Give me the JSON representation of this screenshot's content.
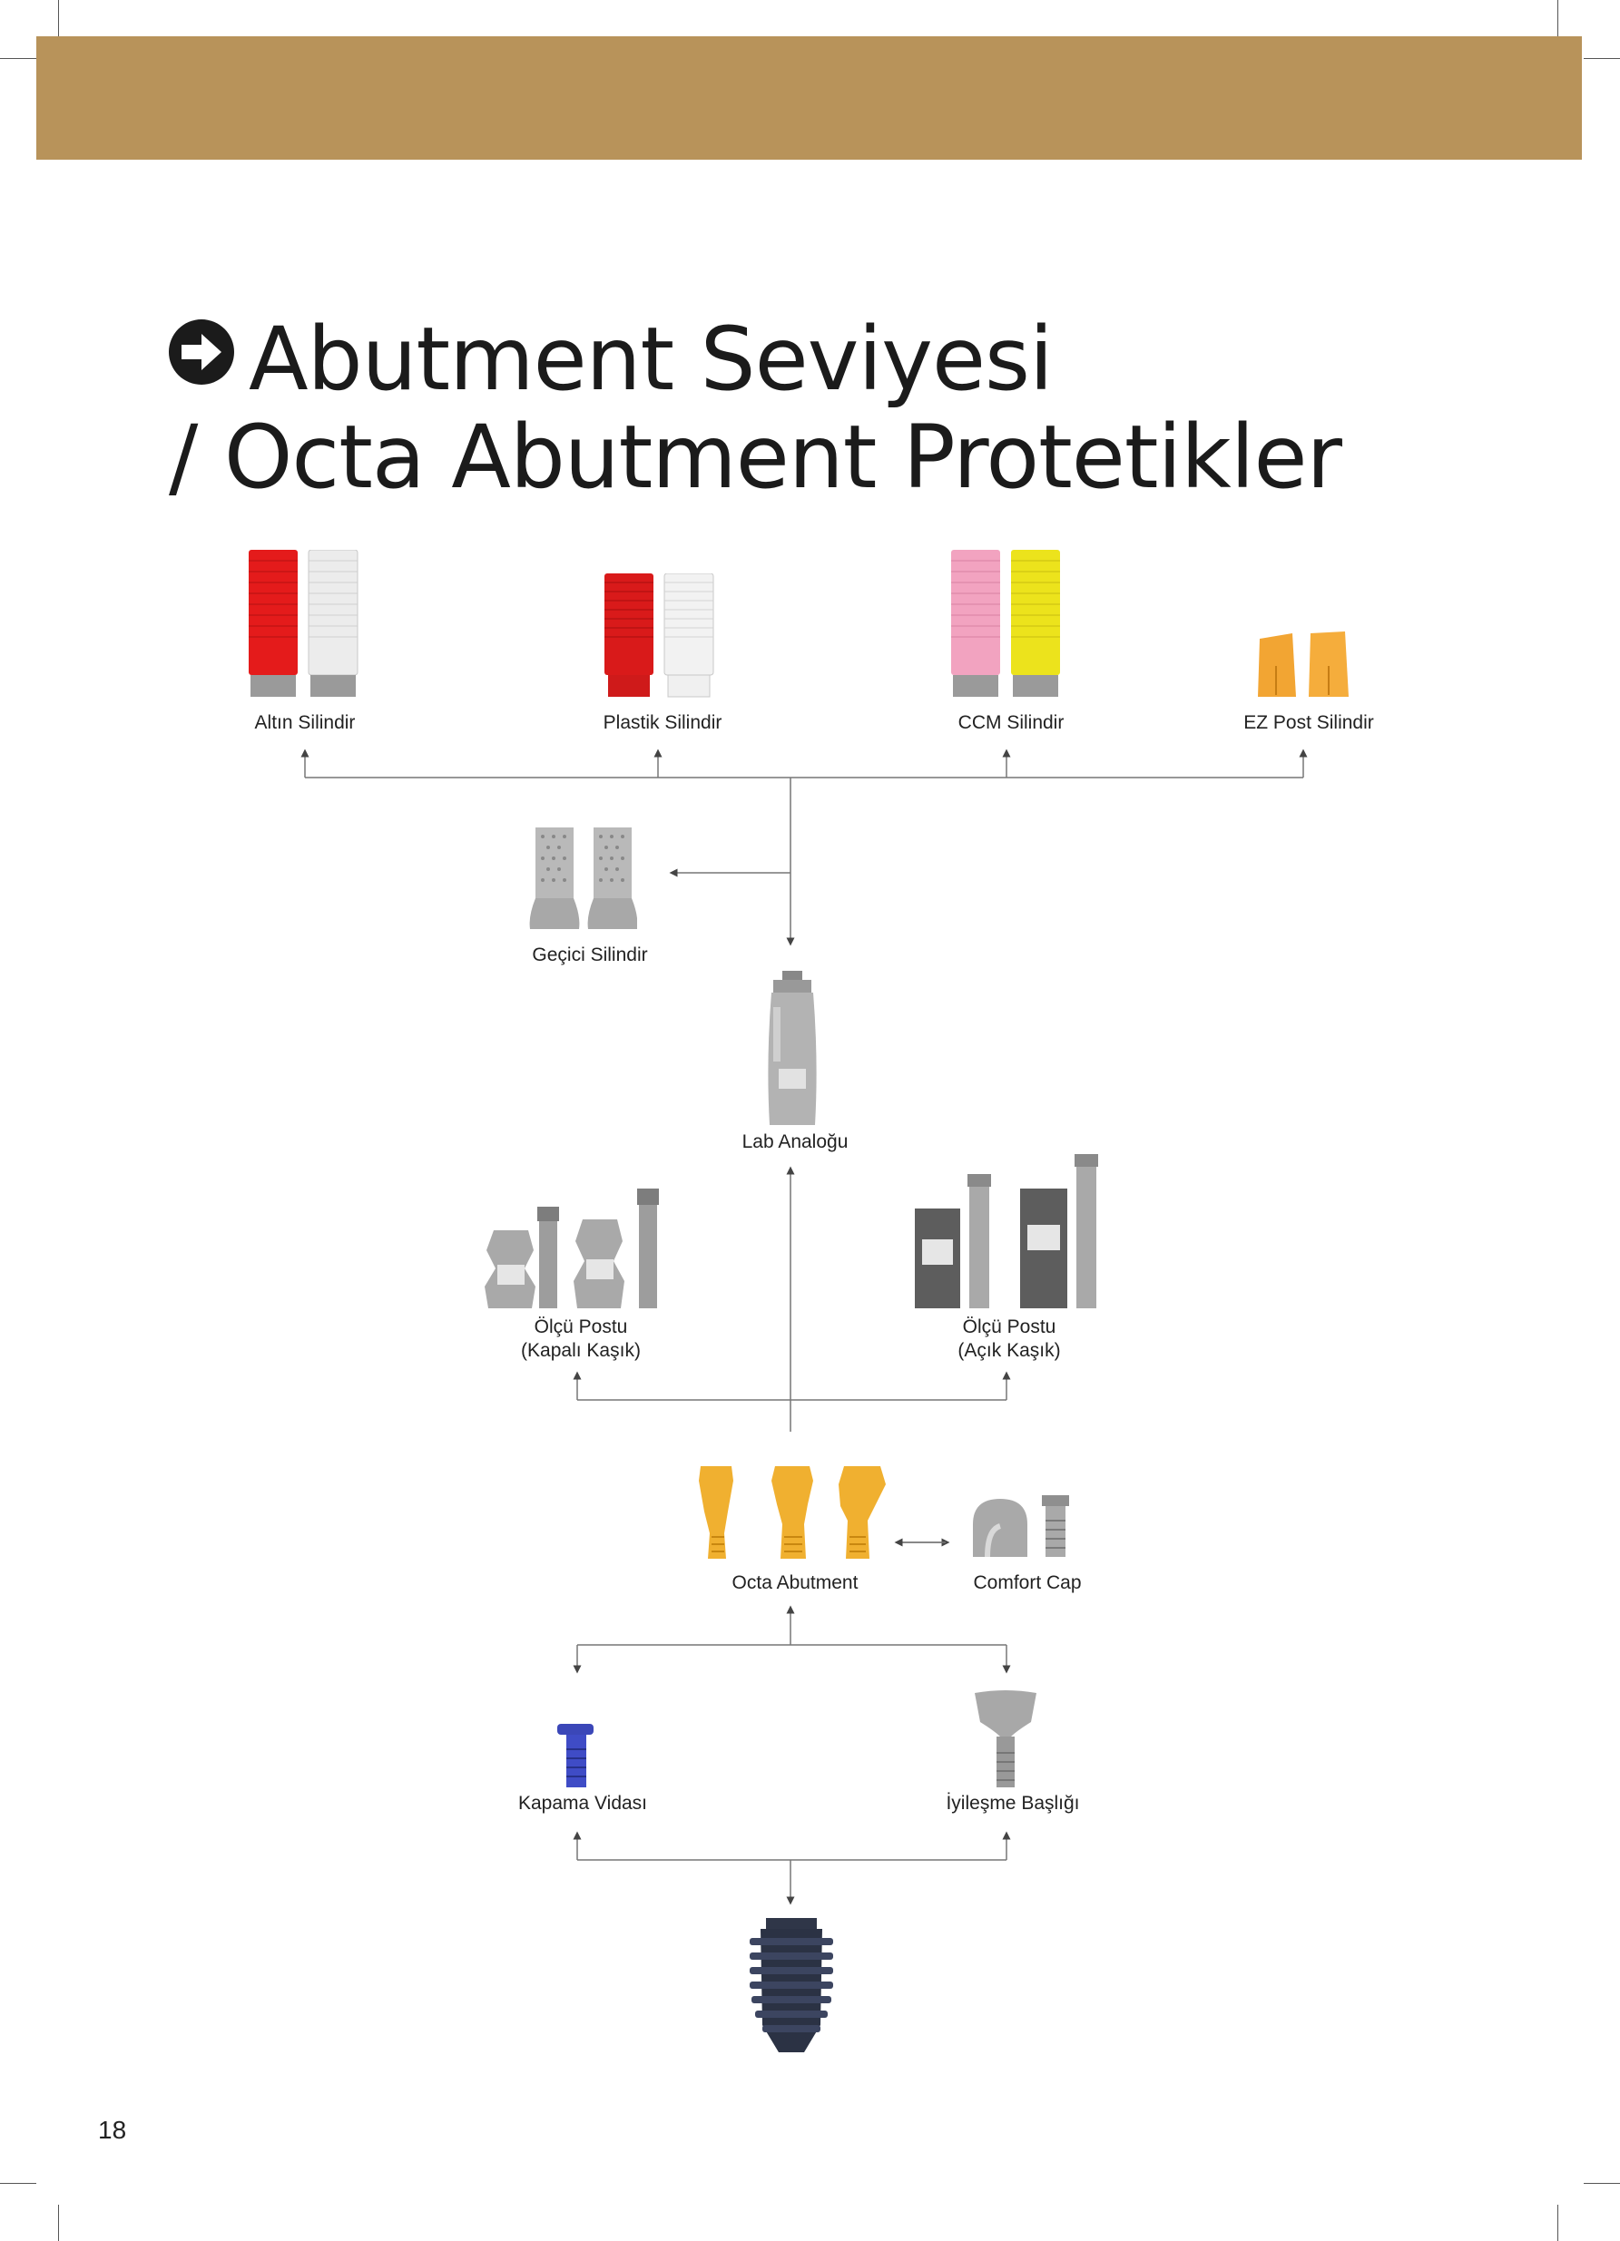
{
  "page": {
    "title_line1": "Abutment Seviyesi",
    "title_line2": "/ Octa Abutment Protetikler",
    "page_number": "18",
    "band_color": "#b8935a"
  },
  "components": {
    "altin_silindir": "Altın Silindir",
    "plastik_silindir": "Plastik Silindir",
    "ccm_silindir": "CCM Silindir",
    "ez_post_silindir": "EZ Post Silindir",
    "gecici_silindir": "Geçici Silindir",
    "lab_analogu": "Lab Analoğu",
    "olcu_kapali_l1": "Ölçü Postu",
    "olcu_kapali_l2": "(Kapalı Kaşık)",
    "olcu_acik_l1": "Ölçü Postu",
    "olcu_acik_l2": "(Açık Kaşık)",
    "octa_abutment": "Octa Abutment",
    "comfort_cap": "Comfort Cap",
    "kapama_vidasi": "Kapama Vidası",
    "iyilesme_basligi": "İyileşme Başlığı"
  },
  "icons": {
    "title_icon": "arrow-right-circle-icon"
  }
}
